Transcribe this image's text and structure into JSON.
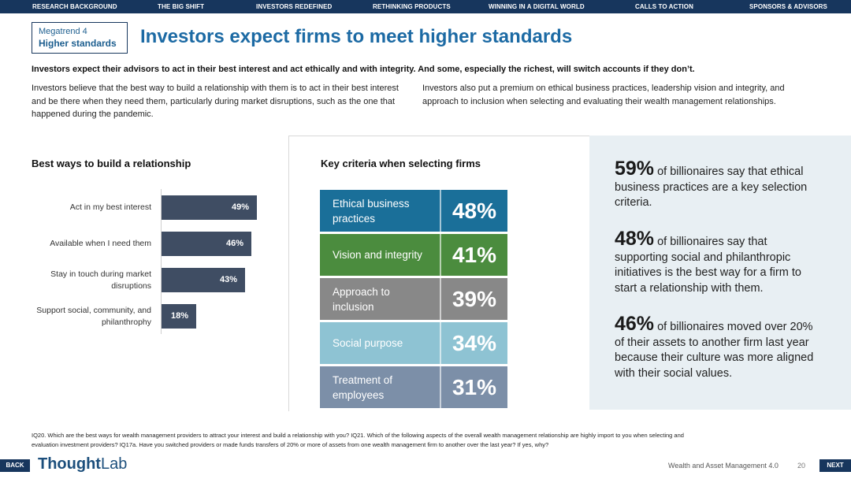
{
  "nav": {
    "items": [
      "RESEARCH BACKGROUND",
      "THE BIG SHIFT",
      "INVESTORS REDEFINED",
      "RETHINKING PRODUCTS",
      "WINNING IN A DIGITAL WORLD",
      "CALLS TO ACTION",
      "SPONSORS & ADVISORS"
    ]
  },
  "header": {
    "megatrend_label": "Megatrend 4",
    "megatrend_name": "Higher standards",
    "title": "Investors expect firms to meet higher standards",
    "subtitle": "Investors expect their advisors to act in their best interest and act ethically and with integrity. And some, especially the richest, will switch accounts if they don’t."
  },
  "intro": {
    "left": "Investors believe that the best way to build a relationship with them is to act in their best interest and be there when they need them, particularly during market disruptions, such as the one that happened during the pandemic.",
    "right": "Investors also put a premium on ethical business practices, leadership vision and integrity, and approach to inclusion when selecting and evaluating their wealth management relationships."
  },
  "chart_data": [
    {
      "type": "bar",
      "orientation": "horizontal",
      "title": "Best ways to build a relationship",
      "categories": [
        "Act in my best interest",
        "Available when I need them",
        "Stay in touch during market disruptions",
        "Support social, community, and philanthrophy"
      ],
      "values": [
        49,
        46,
        43,
        18
      ],
      "value_labels": [
        "49%",
        "46%",
        "43%",
        "18%"
      ],
      "unit": "%",
      "xlim": [
        0,
        100
      ],
      "color": "#3f4d63"
    },
    {
      "type": "table",
      "title": "Key criteria when selecting firms",
      "categories": [
        "Ethical business practices",
        "Vision and integrity",
        "Approach to inclusion",
        "Social purpose",
        "Treatment of employees"
      ],
      "values": [
        48,
        41,
        39,
        34,
        31
      ],
      "value_labels": [
        "48%",
        "41%",
        "39%",
        "34%",
        "31%"
      ],
      "colors": [
        "#1a6f99",
        "#4b8c3e",
        "#888888",
        "#8ec3d3",
        "#7c8fa8"
      ]
    }
  ],
  "stats": [
    {
      "value": "59%",
      "text": "of billionaires say that ethical business practices are a key selection criteria."
    },
    {
      "value": "48%",
      "text": "of billionaires say that supporting social and philanthropic initiatives is the best way for a firm to start a relationship with them."
    },
    {
      "value": "46%",
      "text": "of billionaires moved over 20% of their assets to another firm last year because their culture was more aligned with their social values."
    }
  ],
  "footnote": "IQ20. Which are the best ways for wealth management providers to attract your interest and build a relationship with you? IQ21. Which of the following aspects of the overall wealth management relationship are highly import to you when selecting and evaluation investment providers? IQ17a. Have you switched providers or made funds transfers of 20% or more of assets from one wealth management firm to another over the last year? If yes, why?",
  "footer": {
    "back": "BACK",
    "next": "NEXT",
    "logo_a": "Thought",
    "logo_b": "Lab",
    "doc_title": "Wealth and Asset Management 4.0",
    "page": "20"
  }
}
